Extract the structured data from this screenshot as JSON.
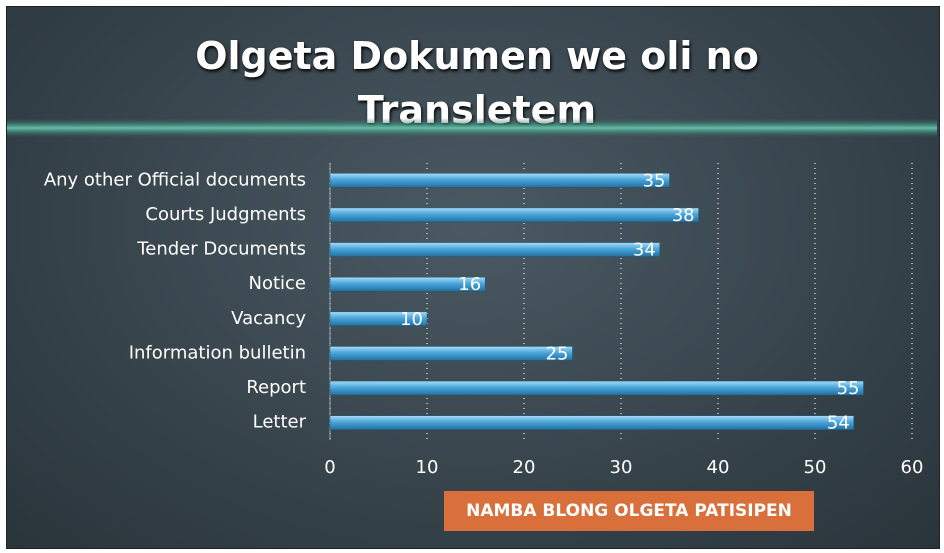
{
  "chart_data": {
    "type": "bar",
    "orientation": "horizontal",
    "title": "Olgeta Dokumen we oli no Transletem",
    "x_label": "NAMBA BLONG OLGETA PATISIPEN",
    "categories": [
      "Any other Official documents",
      "Courts Judgments",
      "Tender Documents",
      "Notice",
      "Vacancy",
      "Information bulletin",
      "Report",
      "Letter"
    ],
    "values": [
      35,
      38,
      34,
      16,
      10,
      25,
      55,
      54
    ],
    "color": "#4aa6dc",
    "xlim": [
      0,
      60
    ],
    "xticks": [
      0,
      10,
      20,
      30,
      40,
      50,
      60
    ],
    "grid": true
  }
}
